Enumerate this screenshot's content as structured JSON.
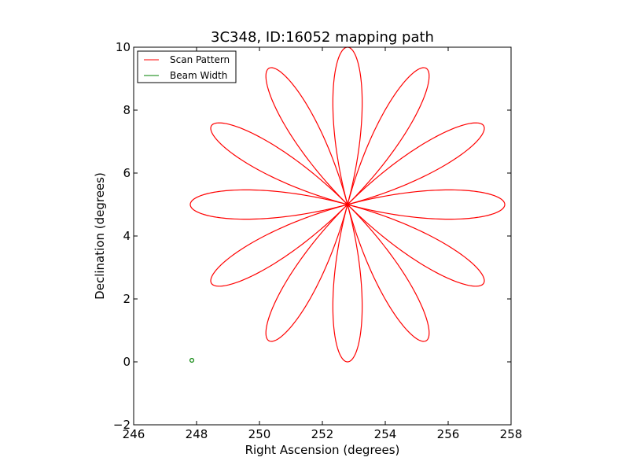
{
  "chart_data": {
    "type": "line",
    "title": "3C348, ID:16052 mapping path",
    "xlabel": "Right Ascension (degrees)",
    "ylabel": "Declination (degrees)",
    "xlim": [
      246,
      258
    ],
    "ylim": [
      -2,
      10
    ],
    "xticks": [
      "246",
      "248",
      "250",
      "252",
      "254",
      "256",
      "258"
    ],
    "yticks": [
      "−2",
      "0",
      "2",
      "4",
      "6",
      "8",
      "10"
    ],
    "grid": false,
    "legend_position": "top-left",
    "series": [
      {
        "name": "Scan Pattern",
        "color": "#ff0000",
        "shape": "rose",
        "center": [
          252.8,
          5.0
        ],
        "radius": 5.0,
        "petals": 12,
        "petal_angles_deg": [
          0,
          30,
          60,
          90,
          120,
          150,
          180,
          210,
          240,
          270,
          300,
          330
        ]
      },
      {
        "name": "Beam Width",
        "color": "#008000",
        "shape": "circle",
        "center": [
          247.85,
          0.05
        ],
        "radius": 0.06
      }
    ]
  }
}
